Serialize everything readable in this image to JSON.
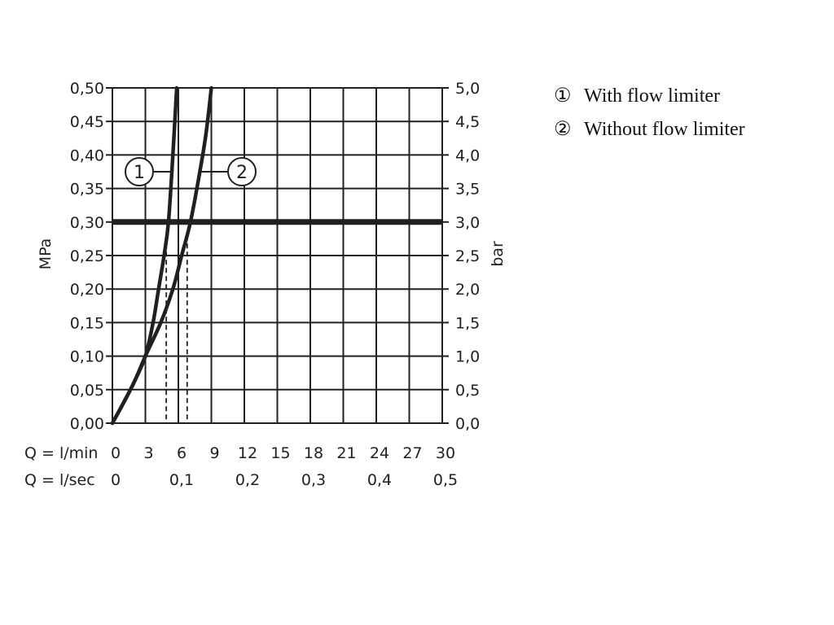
{
  "chart_data": {
    "type": "line",
    "xlim": [
      0,
      30
    ],
    "ylim": [
      0,
      0.5
    ],
    "y2lim": [
      0,
      5
    ],
    "x_ticks": [
      0,
      3,
      6,
      9,
      12,
      15,
      18,
      21,
      24,
      27,
      30
    ],
    "x_tick_labels": [
      "0",
      "3",
      "6",
      "9",
      "12",
      "15",
      "18",
      "21",
      "24",
      "27",
      "30"
    ],
    "x2_ticks": [
      0,
      6,
      12,
      18,
      24,
      30
    ],
    "x2_tick_labels": [
      "0",
      "0,1",
      "0,2",
      "0,3",
      "0,4",
      "0,5"
    ],
    "y_ticks": [
      0,
      0.05,
      0.1,
      0.15,
      0.2,
      0.25,
      0.3,
      0.35,
      0.4,
      0.45,
      0.5
    ],
    "y_tick_labels": [
      "0,00",
      "0,05",
      "0,10",
      "0,15",
      "0,20",
      "0,25",
      "0,30",
      "0,35",
      "0,40",
      "0,45",
      "0,50"
    ],
    "y2_tick_labels": [
      "0,0",
      "0,5",
      "1,0",
      "1,5",
      "2,0",
      "2,5",
      "3,0",
      "3,5",
      "4,0",
      "4,5",
      "5,0"
    ],
    "ylabel": "MPa",
    "y2label": "bar",
    "xlabel": "Q = l/min",
    "x2label": "Q = l/sec",
    "grid": true,
    "reference_line": {
      "y": 0.3,
      "color": "#231f20"
    },
    "series": [
      {
        "marker": "1",
        "name": "With flow limiter",
        "x": [
          0,
          1,
          2,
          3,
          3.7,
          4.2,
          4.7,
          5.1,
          5.5,
          5.85
        ],
        "y": [
          0,
          0.03,
          0.062,
          0.1,
          0.15,
          0.2,
          0.25,
          0.3,
          0.4,
          0.5
        ],
        "color": "#231f20"
      },
      {
        "marker": "2",
        "name": "Without flow limiter",
        "x": [
          0,
          1,
          2,
          3,
          4.4,
          5.5,
          6.3,
          7.1,
          7.9,
          8.5,
          9.0
        ],
        "y": [
          0,
          0.03,
          0.062,
          0.1,
          0.15,
          0.2,
          0.25,
          0.3,
          0.37,
          0.43,
          0.5
        ],
        "color": "#231f20"
      }
    ],
    "dashed_markers": [
      {
        "x": 4.9,
        "y_top": 0.28
      },
      {
        "x": 6.8,
        "y_top": 0.28
      }
    ],
    "solid_marker": {
      "x": 6.0
    },
    "legend": {
      "placement": "right",
      "entries": [
        {
          "symbol": "①",
          "label": "With flow limiter"
        },
        {
          "symbol": "②",
          "label": "Without flow limiter"
        }
      ]
    }
  }
}
